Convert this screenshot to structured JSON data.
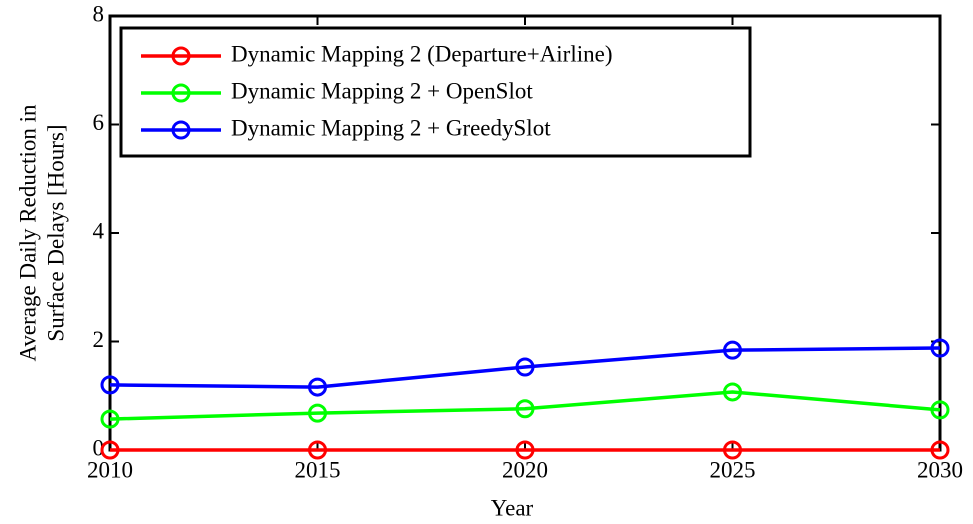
{
  "chart_data": {
    "type": "line",
    "xlabel": "Year",
    "ylabel": [
      "Average Daily Reduction in",
      "Surface Delays [Hours]"
    ],
    "x": [
      2010,
      2015,
      2020,
      2025,
      2030
    ],
    "series": [
      {
        "name": "Dynamic Mapping 2 (Departure+Airline)",
        "color": "#ff0000",
        "values": [
          0,
          0,
          0,
          0,
          0
        ]
      },
      {
        "name": "Dynamic Mapping 2 + OpenSlot",
        "color": "#00ff00",
        "values": [
          0.57,
          0.68,
          0.76,
          1.07,
          0.74
        ]
      },
      {
        "name": "Dynamic Mapping 2 + GreedySlot",
        "color": "#0000ff",
        "values": [
          1.2,
          1.16,
          1.53,
          1.84,
          1.88
        ]
      }
    ],
    "xlim": [
      2010,
      2030
    ],
    "xticks": [
      2010,
      2015,
      2020,
      2025,
      2030
    ],
    "ylim": [
      0,
      8
    ],
    "yticks": [
      0,
      2,
      4,
      6,
      8
    ],
    "grid": false,
    "legend": "upper left"
  }
}
